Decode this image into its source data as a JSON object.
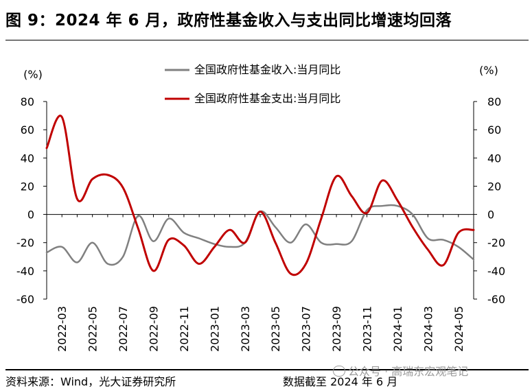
{
  "title": "图 9：2024 年 6 月，政府性基金收入与支出同比增速均回落",
  "footer": {
    "source": "资料来源：Wind，光大证券研究所",
    "date_note": "数据截至 2024 年 6 月",
    "watermark": "公众号 · 高瑞东宏观笔记"
  },
  "colors": {
    "income": "#808080",
    "expense": "#c00000"
  },
  "chart_data": {
    "type": "line",
    "title": "",
    "ylabel_left": "(%)",
    "ylabel_right": "(%)",
    "ylim": [
      -60,
      80
    ],
    "yticks": [
      80,
      60,
      40,
      20,
      0,
      -20,
      -40,
      -60
    ],
    "categories": [
      "2022-02",
      "2022-03",
      "2022-04",
      "2022-05",
      "2022-06",
      "2022-07",
      "2022-08",
      "2022-09",
      "2022-10",
      "2022-11",
      "2022-12",
      "2023-01",
      "2023-02",
      "2023-03",
      "2023-04",
      "2023-05",
      "2023-06",
      "2023-07",
      "2023-08",
      "2023-09",
      "2023-10",
      "2023-11",
      "2023-12",
      "2024-01",
      "2024-02",
      "2024-03",
      "2024-04",
      "2024-05",
      "2024-06"
    ],
    "tick_labels": [
      "2022-03",
      "2022-05",
      "2022-07",
      "2022-09",
      "2022-11",
      "2023-01",
      "2023-03",
      "2023-05",
      "2023-07",
      "2023-09",
      "2023-11",
      "2024-01",
      "2024-03",
      "2024-05"
    ],
    "series": [
      {
        "name": "全国政府性基金收入:当月同比",
        "color": "#808080",
        "values": [
          -27,
          -23,
          -34,
          -20,
          -35,
          -30,
          -1,
          -19,
          -3,
          -13,
          -17,
          -21,
          -23,
          -20,
          2,
          -9,
          -20,
          -7,
          -20,
          -21,
          -19,
          3,
          6,
          6,
          0,
          -17,
          -18,
          -23,
          -32
        ]
      },
      {
        "name": "全国政府性基金支出:当月同比",
        "color": "#c00000",
        "values": [
          47,
          69,
          11,
          25,
          28,
          19,
          -10,
          -40,
          -18,
          -22,
          -35,
          -23,
          -11,
          -20,
          2,
          -20,
          -42,
          -35,
          -3,
          27,
          13,
          1,
          24,
          10,
          -9,
          -25,
          -36,
          -13,
          -11
        ]
      }
    ]
  }
}
